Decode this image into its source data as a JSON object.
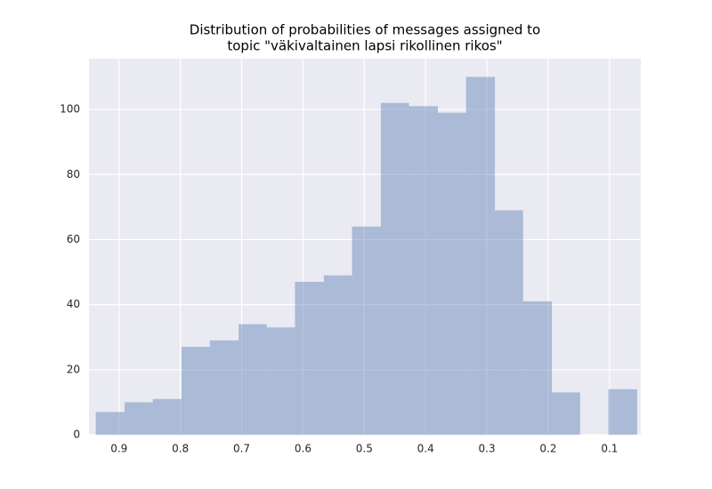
{
  "chart_data": {
    "type": "histogram",
    "title": [
      "Distribution of probabilities of messages assigned to",
      "topic \"väkivaltainen lapsi rikollinen rikos\""
    ],
    "bins": [
      0.055,
      0.102,
      0.148,
      0.194,
      0.241,
      0.287,
      0.334,
      0.38,
      0.427,
      0.473,
      0.52,
      0.566,
      0.613,
      0.659,
      0.705,
      0.752,
      0.798,
      0.845,
      0.891,
      0.938
    ],
    "values": [
      14,
      0,
      13,
      41,
      69,
      110,
      99,
      101,
      102,
      64,
      49,
      47,
      33,
      34,
      29,
      27,
      11,
      10,
      7
    ],
    "color": "#4c72b0",
    "xlim": [
      0.949,
      0.049
    ],
    "xticks": [
      0.9,
      0.8,
      0.7,
      0.6,
      0.5,
      0.4,
      0.3,
      0.2,
      0.1
    ],
    "ylim": [
      0,
      115.6
    ],
    "yticks": [
      0,
      20,
      40,
      60,
      80,
      100
    ],
    "grid": true
  }
}
